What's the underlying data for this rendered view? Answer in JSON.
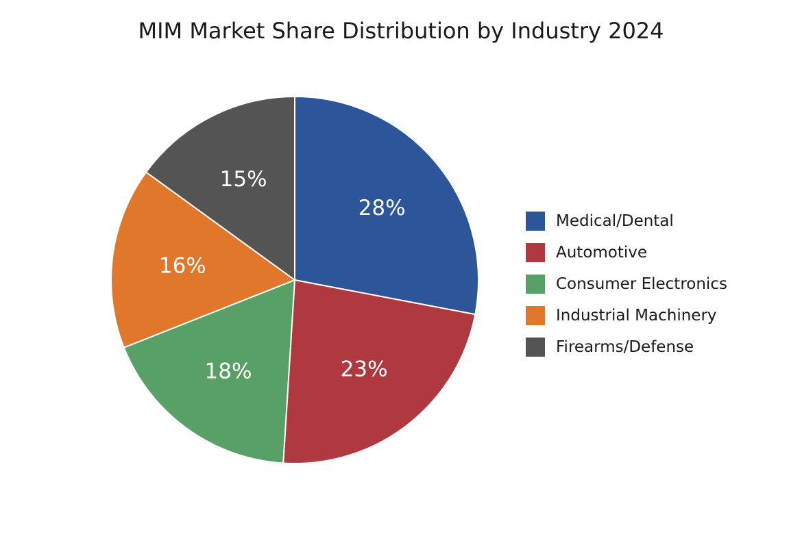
{
  "chart_data": {
    "type": "pie",
    "title": "MIM Market Share Distribution by Industry 2024",
    "legend_position": "right",
    "start_angle_deg": 90,
    "direction": "clockwise",
    "slices": [
      {
        "name": "Medical/Dental",
        "value": 28,
        "label": "28%",
        "color": "#2c5699"
      },
      {
        "name": "Automotive",
        "value": 23,
        "label": "23%",
        "color": "#b0393f"
      },
      {
        "name": "Consumer Electronics",
        "value": 18,
        "label": "18%",
        "color": "#58a066"
      },
      {
        "name": "Industrial Machinery",
        "value": 16,
        "label": "16%",
        "color": "#e0772b"
      },
      {
        "name": "Firearms/Defense",
        "value": 15,
        "label": "15%",
        "color": "#545454"
      }
    ]
  }
}
